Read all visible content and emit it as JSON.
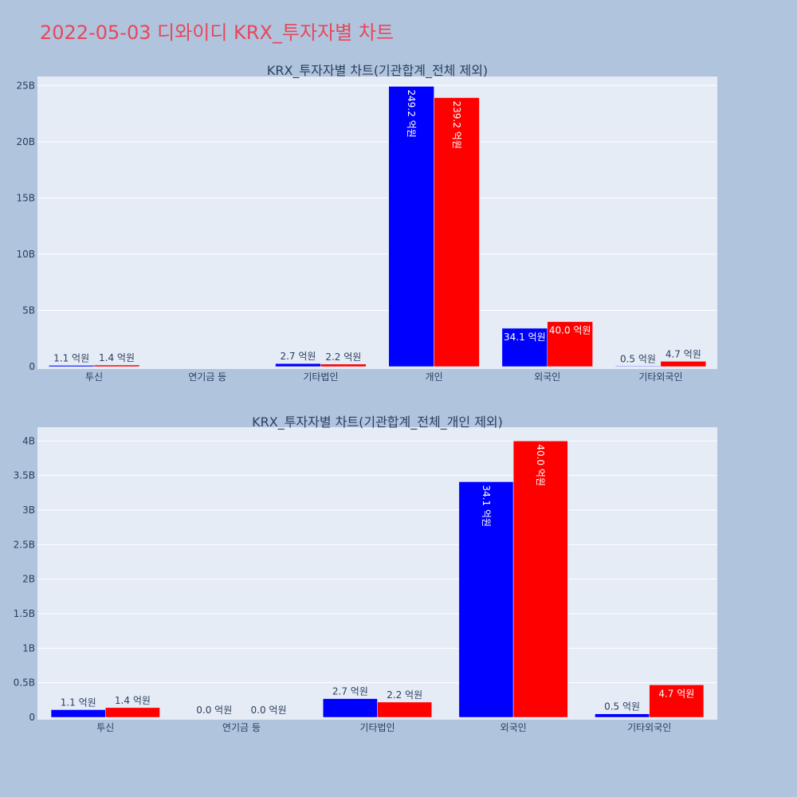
{
  "page_title": "2022-05-03 디와이디 KRX_투자자별 차트",
  "colors": {
    "series_a": "#0000ff",
    "series_b": "#ff0000",
    "plot_bg": "#e5ecf6",
    "page_bg": "#b0c4de",
    "title": "#e8475a"
  },
  "chart_data": [
    {
      "type": "bar",
      "title": "KRX_투자자별 차트(기관합계_전체 제외)",
      "categories": [
        "투신",
        "연기금 등",
        "기타법인",
        "개인",
        "외국인",
        "기타외국인"
      ],
      "ylim": [
        0,
        25.8
      ],
      "yticks": [
        0,
        5,
        10,
        15,
        20,
        25
      ],
      "ytick_labels": [
        "0",
        "5B",
        "10B",
        "15B",
        "20B",
        "25B"
      ],
      "grid": true,
      "series": [
        {
          "values": [
            0.11,
            0,
            0.27,
            24.92,
            3.41,
            0.05
          ],
          "labels": [
            "1.1 억원",
            "",
            "2.7 억원",
            "249.2 억원",
            "34.1 억원",
            "0.5 억원"
          ]
        },
        {
          "values": [
            0.14,
            0,
            0.22,
            23.92,
            4.0,
            0.47
          ],
          "labels": [
            "1.4 억원",
            "",
            "2.2 억원",
            "239.2 억원",
            "40.0 억원",
            "4.7 억원"
          ]
        }
      ]
    },
    {
      "type": "bar",
      "title": "KRX_투자자별 차트(기관합계_전체_개인 제외)",
      "categories": [
        "투신",
        "연기금 등",
        "기타법인",
        "외국인",
        "기타외국인"
      ],
      "ylim": [
        0,
        4.2
      ],
      "yticks": [
        0,
        0.5,
        1,
        1.5,
        2,
        2.5,
        3,
        3.5,
        4
      ],
      "ytick_labels": [
        "0",
        "0.5B",
        "1B",
        "1.5B",
        "2B",
        "2.5B",
        "3B",
        "3.5B",
        "4B"
      ],
      "grid": true,
      "series": [
        {
          "values": [
            0.11,
            0,
            0.27,
            3.41,
            0.05
          ],
          "labels": [
            "1.1 억원",
            "0.0 억원",
            "2.7 억원",
            "34.1 억원",
            "0.5 억원"
          ]
        },
        {
          "values": [
            0.14,
            0,
            0.22,
            4.0,
            0.47
          ],
          "labels": [
            "1.4 억원",
            "0.0 억원",
            "2.2 억원",
            "40.0 억원",
            "4.7 억원"
          ]
        }
      ]
    }
  ]
}
